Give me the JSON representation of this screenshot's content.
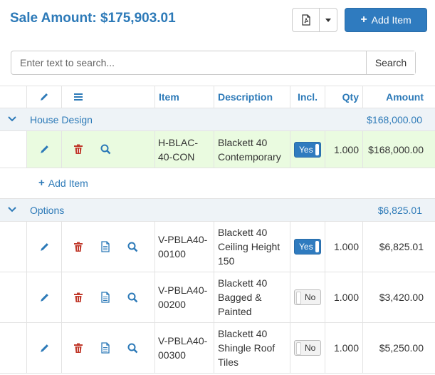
{
  "header": {
    "title": "Sale Amount: $175,903.01",
    "add_item_label": "Add Item"
  },
  "search": {
    "placeholder": "Enter text to search...",
    "button_label": "Search"
  },
  "columns": {
    "item": "Item",
    "description": "Description",
    "incl": "Incl.",
    "qty": "Qty",
    "amount": "Amount"
  },
  "groups": [
    {
      "name": "House Design",
      "amount": "$168,000.00",
      "add_item_label": "Add Item",
      "items": [
        {
          "code_1": "H-BLAC-",
          "code_2": "40-CON",
          "desc_1": "Blackett 40",
          "desc_2": "Contemporary",
          "desc_3": "",
          "incl": "Yes",
          "qty": "1.000",
          "amount": "$168,000.00"
        }
      ]
    },
    {
      "name": "Options",
      "amount": "$6,825.01",
      "items": [
        {
          "code_1": "V-PBLA40-",
          "code_2": "00100",
          "desc_1": "Blackett 40",
          "desc_2": "Ceiling Height",
          "desc_3": "150",
          "incl": "Yes",
          "qty": "1.000",
          "amount": "$6,825.01"
        },
        {
          "code_1": "V-PBLA40-",
          "code_2": "00200",
          "desc_1": "Blackett 40",
          "desc_2": "Bagged &",
          "desc_3": "Painted",
          "incl": "No",
          "qty": "1.000",
          "amount": "$3,420.00"
        },
        {
          "code_1": "V-PBLA40-",
          "code_2": "00300",
          "desc_1": "Blackett 40",
          "desc_2": "Shingle Roof",
          "desc_3": "Tiles",
          "incl": "No",
          "qty": "1.000",
          "amount": "$5,250.00"
        }
      ]
    }
  ],
  "colors": {
    "accent": "#2d7ab8",
    "delete": "#c0392b",
    "selected_row": "#eafbe0",
    "group_row": "#eef3f7"
  }
}
